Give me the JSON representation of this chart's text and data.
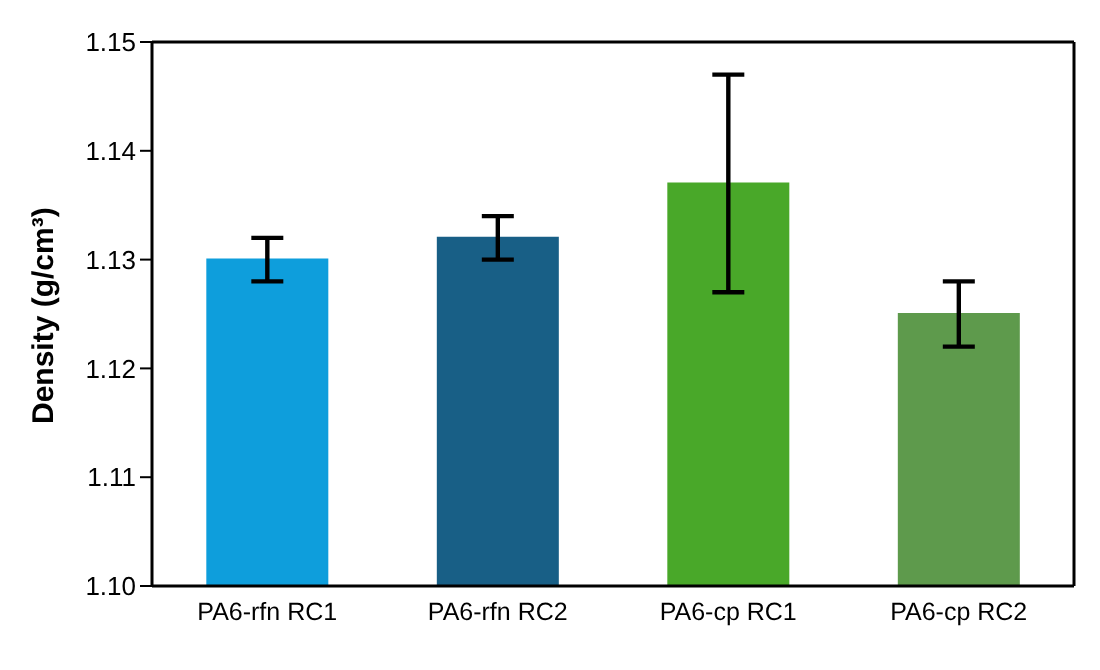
{
  "chart_data": {
    "type": "bar",
    "ylabel": "Density (g/cm³)",
    "categories": [
      "PA6-rfn RC1",
      "PA6-rfn RC2",
      "PA6-cp RC1",
      "PA6-cp RC2"
    ],
    "values": [
      1.13,
      1.132,
      1.137,
      1.125
    ],
    "colors": [
      "#0e9edc",
      "#185f86",
      "#49a829",
      "#5e9a4c"
    ],
    "errors": [
      0.002,
      0.002,
      0.01,
      0.003
    ],
    "ylim": [
      1.1,
      1.15
    ],
    "yticks": [
      {
        "value": 1.1,
        "label": "1.10"
      },
      {
        "value": 1.11,
        "label": "1.11"
      },
      {
        "value": 1.12,
        "label": "1.12"
      },
      {
        "value": 1.13,
        "label": "1.13"
      },
      {
        "value": 1.14,
        "label": "1.14"
      },
      {
        "value": 1.15,
        "label": "1.15"
      }
    ],
    "grid": false
  }
}
